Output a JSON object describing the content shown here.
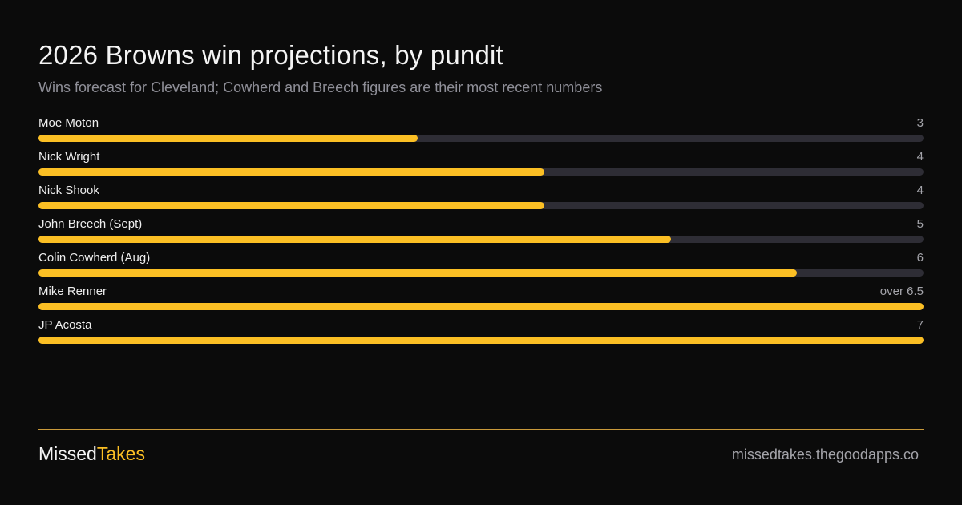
{
  "header": {
    "title": "2026 Browns win projections, by pundit",
    "subtitle": "Wins forecast for Cleveland; Cowherd and Breech figures are their most recent numbers"
  },
  "colors": {
    "background": "#0b0b0b",
    "bar_fill": "#fbbf24",
    "bar_track": "#2e2d35",
    "rule": "#c99a3b"
  },
  "chart_data": {
    "type": "bar",
    "orientation": "horizontal",
    "xlim": [
      0,
      7
    ],
    "grid": false,
    "categories": [
      "Moe Moton",
      "Nick Wright",
      "Nick Shook",
      "John Breech (Sept)",
      "Colin Cowherd (Aug)",
      "Mike Renner",
      "JP Acosta"
    ],
    "values": [
      3,
      4,
      4,
      5,
      6,
      7,
      7
    ],
    "value_labels": [
      "3",
      "4",
      "4",
      "5",
      "6",
      "over 6.5",
      "7"
    ]
  },
  "footer": {
    "brand_part1": "Missed",
    "brand_part2": "Takes",
    "site": "missedtakes.thegoodapps.co"
  }
}
